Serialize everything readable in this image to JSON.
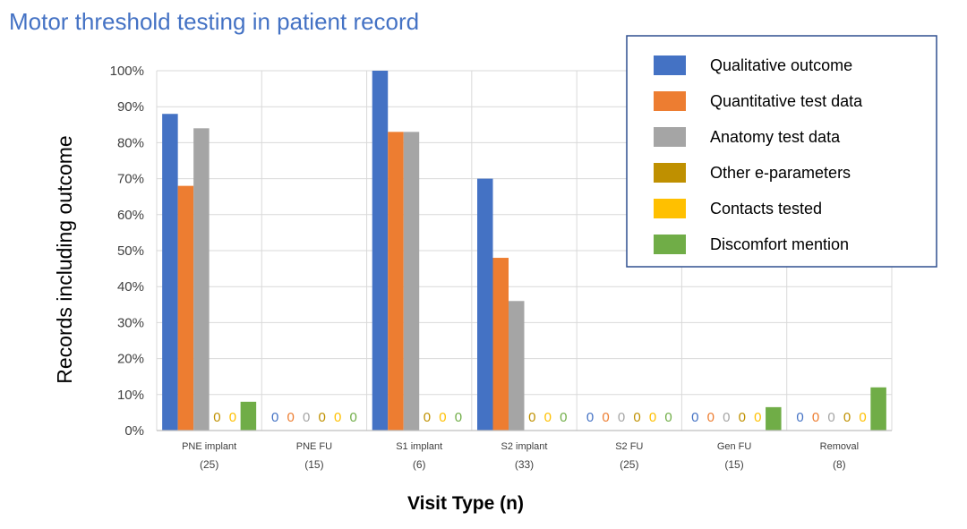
{
  "chart_data": {
    "type": "bar",
    "title": "Motor threshold testing in patient record",
    "xlabel": "Visit Type (n)",
    "ylabel": "Records including outcome",
    "ylim": [
      0,
      100
    ],
    "y_ticks": [
      "0%",
      "10%",
      "20%",
      "30%",
      "40%",
      "50%",
      "60%",
      "70%",
      "80%",
      "90%",
      "100%"
    ],
    "grid": true,
    "legend_position": "top-right",
    "categories": [
      {
        "name": "PNE implant",
        "n": "(25)"
      },
      {
        "name": "PNE FU",
        "n": "(15)"
      },
      {
        "name": "S1 implant",
        "n": "(6)"
      },
      {
        "name": "S2 implant",
        "n": "(33)"
      },
      {
        "name": "S2 FU",
        "n": "(25)"
      },
      {
        "name": "Gen FU",
        "n": "(15)"
      },
      {
        "name": "Removal",
        "n": "(8)"
      }
    ],
    "series": [
      {
        "name": "Qualitative outcome",
        "color": "#4472C4",
        "values": [
          88,
          0,
          100,
          70,
          0,
          0,
          0
        ]
      },
      {
        "name": "Quantitative test data",
        "color": "#ED7D31",
        "values": [
          68,
          0,
          83,
          48,
          0,
          0,
          0
        ]
      },
      {
        "name": "Anatomy test data",
        "color": "#A5A5A5",
        "values": [
          84,
          0,
          83,
          36,
          0,
          0,
          0
        ]
      },
      {
        "name": "Other e-parameters",
        "color": "#BF9000",
        "values": [
          0,
          0,
          0,
          0,
          0,
          0,
          0
        ]
      },
      {
        "name": "Contacts tested",
        "color": "#FFC000",
        "values": [
          0,
          0,
          0,
          0,
          0,
          0,
          0
        ]
      },
      {
        "name": "Discomfort mention",
        "color": "#70AD47",
        "values": [
          8,
          0,
          0,
          0,
          0,
          6.5,
          12
        ]
      }
    ],
    "zero_label": "0"
  }
}
